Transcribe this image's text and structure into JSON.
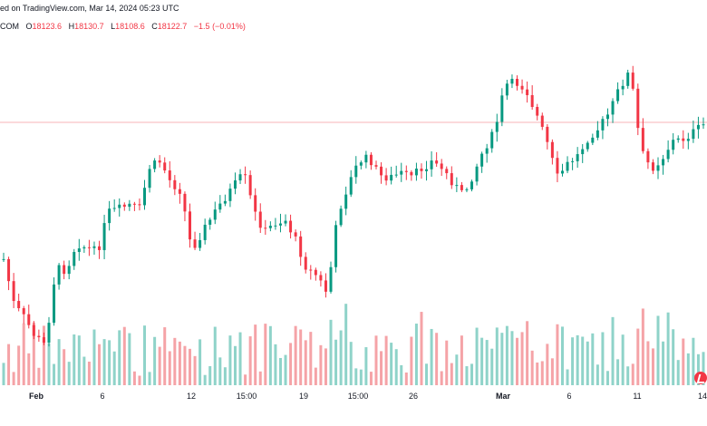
{
  "header": {
    "published_text": "ed on TradingView.com, Mar 14, 2024 05:23 UTC",
    "symbol_fragment": "COM",
    "open_label": "O",
    "open": "18123.6",
    "high_label": "H",
    "high": "18130.7",
    "low_label": "L",
    "low": "18108.6",
    "close_label": "C",
    "close": "18122.7",
    "change": "−1.5 (−0.01%)"
  },
  "colors": {
    "up": "#089981",
    "down": "#f23645",
    "volume_up": "#8fd3c9",
    "volume_down": "#f5a3a7",
    "last_price_line": "#f7b3b7",
    "logo": "#f23645"
  },
  "icons": {
    "logo": "tradingview-logo-icon"
  },
  "chart_data": {
    "type": "candlestick",
    "x_tick_labels": [
      "Feb",
      "6",
      "12",
      "15:00",
      "19",
      "15:00",
      "26",
      "Mar",
      "6",
      "11",
      "14"
    ],
    "last_price": 18122.7,
    "grid": false,
    "volume_histogram": true,
    "y_axis_labels_visible": false
  }
}
